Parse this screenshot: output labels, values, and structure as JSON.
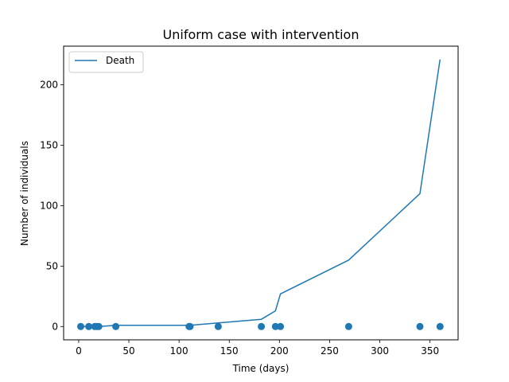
{
  "chart_data": {
    "type": "line",
    "title": "Uniform case with intervention",
    "xlabel": "Time (days)",
    "ylabel": "Number of individuals",
    "xlim": [
      -15,
      378
    ],
    "ylim": [
      -11,
      232
    ],
    "xticks": [
      0,
      50,
      100,
      150,
      200,
      250,
      300,
      350
    ],
    "yticks": [
      0,
      50,
      100,
      150,
      200
    ],
    "grid": false,
    "legend_position": "top-left",
    "series": [
      {
        "name": "Death",
        "kind": "line",
        "color": "#1f77b4",
        "x": [
          2,
          10,
          16,
          18,
          20,
          37,
          110,
          111,
          139,
          182,
          196,
          201,
          269,
          340,
          360
        ],
        "y": [
          0,
          0,
          0,
          0,
          0,
          1,
          1,
          1,
          3,
          6,
          13,
          27,
          55,
          110,
          221
        ]
      },
      {
        "kind": "scatter",
        "color": "#1f77b4",
        "x": [
          2,
          10,
          16,
          18,
          20,
          37,
          110,
          111,
          139,
          182,
          196,
          201,
          269,
          340,
          360
        ],
        "y": [
          0,
          0,
          0,
          0,
          0,
          0,
          0,
          0,
          0,
          0,
          0,
          0,
          0,
          0,
          0
        ]
      }
    ]
  }
}
